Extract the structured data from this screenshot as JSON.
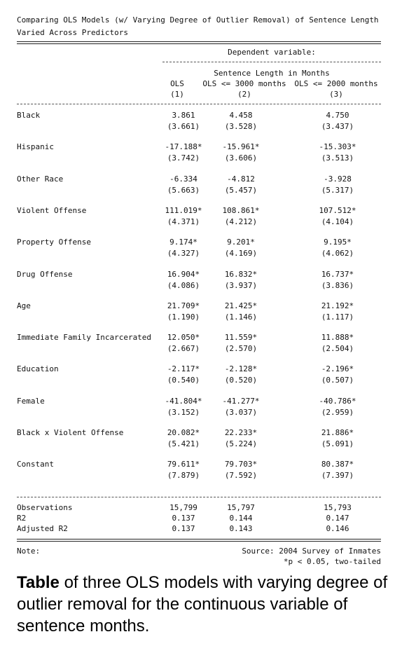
{
  "title_line1": "Comparing OLS Models (w/ Varying Degree of Outlier Removal) of Sentence Length",
  "title_line2": "Varied Across Predictors",
  "dependent_variable_label": "Dependent variable:",
  "dependent_variable": "Sentence Length in Months",
  "models": [
    {
      "name": "OLS",
      "number": "(1)"
    },
    {
      "name": "OLS <= 3000 months",
      "number": "(2)"
    },
    {
      "name": "OLS <= 2000 months",
      "number": "(3)"
    }
  ],
  "rows": [
    {
      "label": "Black",
      "coefs": [
        "3.861",
        "4.458",
        "4.750"
      ],
      "ses": [
        "(3.661)",
        "(3.528)",
        "(3.437)"
      ]
    },
    {
      "label": "Hispanic",
      "coefs": [
        "-17.188*",
        "-15.961*",
        "-15.303*"
      ],
      "ses": [
        "(3.742)",
        "(3.606)",
        "(3.513)"
      ]
    },
    {
      "label": "Other Race",
      "coefs": [
        "-6.334",
        "-4.812",
        "-3.928"
      ],
      "ses": [
        "(5.663)",
        "(5.457)",
        "(5.317)"
      ]
    },
    {
      "label": "Violent Offense",
      "coefs": [
        "111.019*",
        "108.861*",
        "107.512*"
      ],
      "ses": [
        "(4.371)",
        "(4.212)",
        "(4.104)"
      ]
    },
    {
      "label": "Property Offense",
      "coefs": [
        "9.174*",
        "9.201*",
        "9.195*"
      ],
      "ses": [
        "(4.327)",
        "(4.169)",
        "(4.062)"
      ]
    },
    {
      "label": "Drug Offense",
      "coefs": [
        "16.904*",
        "16.832*",
        "16.737*"
      ],
      "ses": [
        "(4.086)",
        "(3.937)",
        "(3.836)"
      ]
    },
    {
      "label": "Age",
      "coefs": [
        "21.709*",
        "21.425*",
        "21.192*"
      ],
      "ses": [
        "(1.190)",
        "(1.146)",
        "(1.117)"
      ]
    },
    {
      "label": "Immediate Family Incarcerated",
      "coefs": [
        "12.050*",
        "11.559*",
        "11.888*"
      ],
      "ses": [
        "(2.667)",
        "(2.570)",
        "(2.504)"
      ]
    },
    {
      "label": "Education",
      "coefs": [
        "-2.117*",
        "-2.128*",
        "-2.196*"
      ],
      "ses": [
        "(0.540)",
        "(0.520)",
        "(0.507)"
      ]
    },
    {
      "label": "Female",
      "coefs": [
        "-41.804*",
        "-41.277*",
        "-40.786*"
      ],
      "ses": [
        "(3.152)",
        "(3.037)",
        "(2.959)"
      ]
    },
    {
      "label": "Black x Violent Offense",
      "coefs": [
        "20.082*",
        "22.233*",
        "21.886*"
      ],
      "ses": [
        "(5.421)",
        "(5.224)",
        "(5.091)"
      ]
    },
    {
      "label": "Constant",
      "coefs": [
        "79.611*",
        "79.703*",
        "80.387*"
      ],
      "ses": [
        "(7.879)",
        "(7.592)",
        "(7.397)"
      ]
    }
  ],
  "stats": [
    {
      "label": "Observations",
      "values": [
        "15,799",
        "15,797",
        "15,793"
      ]
    },
    {
      "label": "R2",
      "values": [
        "0.137",
        "0.144",
        "0.147"
      ]
    },
    {
      "label": "Adjusted R2",
      "values": [
        "0.137",
        "0.143",
        "0.146"
      ]
    }
  ],
  "note_label": "Note:",
  "source": "Source: 2004 Survey of Inmates",
  "significance": "*p < 0.05, two-tailed",
  "caption_bold": "Table",
  "caption_rest": " of three OLS models with varying degree of outlier removal for the continuous variable of sentence months."
}
